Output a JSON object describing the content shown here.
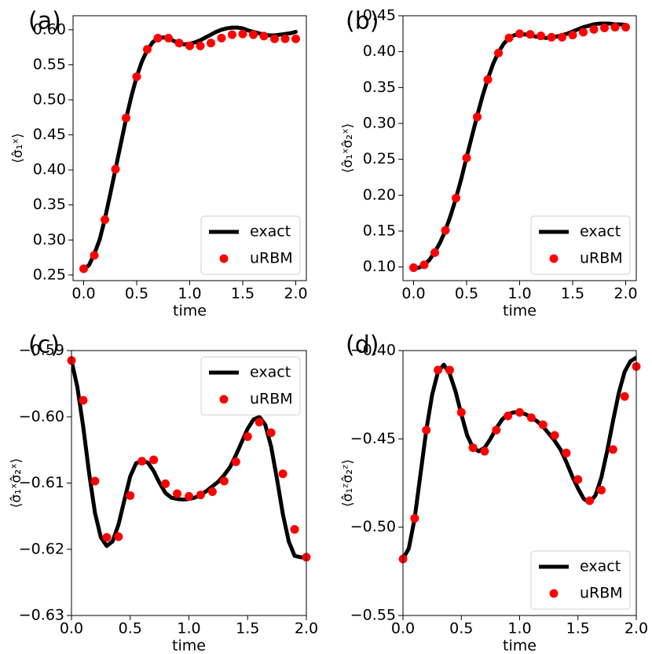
{
  "chart_data": [
    {
      "panel_label": "(a)",
      "type": "line",
      "xlabel": "time",
      "ylabel": "⟨σ̂₁ˣ⟩",
      "xlim": [
        -0.1,
        2.1
      ],
      "ylim": [
        0.242,
        0.62
      ],
      "xticks": [
        0.0,
        0.5,
        1.0,
        1.5,
        2.0
      ],
      "xtick_labels": [
        "0.0",
        "0.5",
        "1.0",
        "1.5",
        "2.0"
      ],
      "yticks": [
        0.25,
        0.3,
        0.35,
        0.4,
        0.45,
        0.5,
        0.55,
        0.6
      ],
      "ytick_labels": [
        "0.25",
        "0.30",
        "0.35",
        "0.40",
        "0.45",
        "0.50",
        "0.55",
        "0.60"
      ],
      "legend_position": "lower-right",
      "series": [
        {
          "name": "exact",
          "style": "line",
          "color": "#000000",
          "x": [
            0.0,
            0.05,
            0.1,
            0.15,
            0.2,
            0.25,
            0.3,
            0.35,
            0.4,
            0.45,
            0.5,
            0.55,
            0.6,
            0.65,
            0.7,
            0.75,
            0.8,
            0.85,
            0.9,
            0.95,
            1.0,
            1.05,
            1.1,
            1.15,
            1.2,
            1.25,
            1.3,
            1.35,
            1.4,
            1.45,
            1.5,
            1.55,
            1.6,
            1.65,
            1.7,
            1.75,
            1.8,
            1.85,
            1.9,
            1.95,
            2.0
          ],
          "y": [
            0.258,
            0.264,
            0.28,
            0.3,
            0.33,
            0.365,
            0.401,
            0.437,
            0.473,
            0.505,
            0.533,
            0.555,
            0.571,
            0.582,
            0.588,
            0.589,
            0.588,
            0.584,
            0.581,
            0.579,
            0.58,
            0.582,
            0.585,
            0.589,
            0.593,
            0.597,
            0.6,
            0.602,
            0.603,
            0.603,
            0.602,
            0.599,
            0.597,
            0.595,
            0.593,
            0.592,
            0.592,
            0.593,
            0.594,
            0.595,
            0.597
          ]
        },
        {
          "name": "uRBM",
          "style": "markers",
          "color": "#ff0000",
          "x": [
            0.0,
            0.1,
            0.2,
            0.3,
            0.4,
            0.5,
            0.6,
            0.7,
            0.8,
            0.9,
            1.0,
            1.1,
            1.2,
            1.3,
            1.4,
            1.5,
            1.6,
            1.7,
            1.8,
            1.9,
            2.0
          ],
          "y": [
            0.259,
            0.278,
            0.329,
            0.401,
            0.474,
            0.533,
            0.572,
            0.588,
            0.588,
            0.581,
            0.577,
            0.577,
            0.581,
            0.588,
            0.593,
            0.594,
            0.593,
            0.591,
            0.587,
            0.587,
            0.587
          ]
        }
      ]
    },
    {
      "panel_label": "(b)",
      "type": "line",
      "xlabel": "time",
      "ylabel": "⟨σ̂₁ˣσ̂₂ˣ⟩",
      "xlim": [
        -0.1,
        2.1
      ],
      "ylim": [
        0.081,
        0.45
      ],
      "xticks": [
        0.0,
        0.5,
        1.0,
        1.5,
        2.0
      ],
      "xtick_labels": [
        "0.0",
        "0.5",
        "1.0",
        "1.5",
        "2.0"
      ],
      "yticks": [
        0.1,
        0.15,
        0.2,
        0.25,
        0.3,
        0.35,
        0.4,
        0.45
      ],
      "ytick_labels": [
        "0.10",
        "0.15",
        "0.20",
        "0.25",
        "0.30",
        "0.35",
        "0.40",
        "0.45"
      ],
      "legend_position": "lower-right",
      "series": [
        {
          "name": "exact",
          "style": "line",
          "color": "#000000",
          "x": [
            0.0,
            0.05,
            0.1,
            0.15,
            0.2,
            0.25,
            0.3,
            0.35,
            0.4,
            0.45,
            0.5,
            0.55,
            0.6,
            0.65,
            0.7,
            0.75,
            0.8,
            0.85,
            0.9,
            0.95,
            1.0,
            1.05,
            1.1,
            1.15,
            1.2,
            1.25,
            1.3,
            1.35,
            1.4,
            1.45,
            1.5,
            1.55,
            1.6,
            1.65,
            1.7,
            1.75,
            1.8,
            1.85,
            1.9,
            1.95,
            2.0
          ],
          "y": [
            0.098,
            0.099,
            0.103,
            0.11,
            0.121,
            0.134,
            0.151,
            0.172,
            0.196,
            0.223,
            0.253,
            0.282,
            0.311,
            0.338,
            0.362,
            0.383,
            0.399,
            0.411,
            0.419,
            0.423,
            0.424,
            0.424,
            0.423,
            0.421,
            0.42,
            0.419,
            0.42,
            0.421,
            0.423,
            0.425,
            0.428,
            0.431,
            0.434,
            0.436,
            0.438,
            0.439,
            0.439,
            0.439,
            0.438,
            0.438,
            0.437
          ]
        },
        {
          "name": "uRBM",
          "style": "markers",
          "color": "#ff0000",
          "x": [
            0.0,
            0.1,
            0.2,
            0.3,
            0.4,
            0.5,
            0.6,
            0.7,
            0.8,
            0.9,
            1.0,
            1.1,
            1.2,
            1.3,
            1.4,
            1.5,
            1.6,
            1.7,
            1.8,
            1.9,
            2.0
          ],
          "y": [
            0.099,
            0.103,
            0.12,
            0.151,
            0.196,
            0.252,
            0.309,
            0.361,
            0.398,
            0.419,
            0.425,
            0.424,
            0.422,
            0.42,
            0.42,
            0.423,
            0.427,
            0.431,
            0.433,
            0.434,
            0.434
          ]
        }
      ]
    },
    {
      "panel_label": "(c)",
      "type": "line",
      "xlabel": "time",
      "ylabel": "⟨σ̂₁ˣσ̂₂ˣ⟩",
      "xlim": [
        0.0,
        2.0
      ],
      "ylim": [
        -0.63,
        -0.59
      ],
      "xticks": [
        0.0,
        0.5,
        1.0,
        1.5,
        2.0
      ],
      "xtick_labels": [
        "0.0",
        "0.5",
        "1.0",
        "1.5",
        "2.0"
      ],
      "yticks": [
        -0.63,
        -0.62,
        -0.61,
        -0.6,
        -0.59
      ],
      "ytick_labels": [
        "−0.63",
        "−0.62",
        "−0.61",
        "−0.60",
        "−0.59"
      ],
      "legend_position": "upper-right",
      "series": [
        {
          "name": "exact",
          "style": "line",
          "color": "#000000",
          "x": [
            0.0,
            0.05,
            0.1,
            0.15,
            0.2,
            0.25,
            0.3,
            0.35,
            0.4,
            0.45,
            0.5,
            0.55,
            0.6,
            0.65,
            0.7,
            0.75,
            0.8,
            0.85,
            0.9,
            0.95,
            1.0,
            1.05,
            1.1,
            1.15,
            1.2,
            1.25,
            1.3,
            1.35,
            1.4,
            1.45,
            1.5,
            1.55,
            1.6,
            1.65,
            1.7,
            1.75,
            1.8,
            1.85,
            1.9,
            1.95,
            2.0
          ],
          "y": [
            -0.5915,
            -0.5955,
            -0.6015,
            -0.6085,
            -0.6145,
            -0.6182,
            -0.6195,
            -0.6188,
            -0.6163,
            -0.6126,
            -0.609,
            -0.607,
            -0.6067,
            -0.6069,
            -0.6082,
            -0.61,
            -0.6115,
            -0.6122,
            -0.6124,
            -0.6125,
            -0.6124,
            -0.6122,
            -0.6118,
            -0.6112,
            -0.6105,
            -0.6098,
            -0.6088,
            -0.6076,
            -0.6058,
            -0.6038,
            -0.6018,
            -0.6004,
            -0.6,
            -0.6012,
            -0.6045,
            -0.6094,
            -0.6147,
            -0.6188,
            -0.621,
            -0.6212,
            -0.6213
          ]
        },
        {
          "name": "uRBM",
          "style": "markers",
          "color": "#ff0000",
          "x": [
            0.0,
            0.1,
            0.2,
            0.3,
            0.4,
            0.5,
            0.6,
            0.7,
            0.8,
            0.9,
            1.0,
            1.1,
            1.2,
            1.3,
            1.4,
            1.5,
            1.6,
            1.7,
            1.8,
            1.9,
            2.0
          ],
          "y": [
            -0.5915,
            -0.5975,
            -0.6097,
            -0.6182,
            -0.6181,
            -0.6119,
            -0.6067,
            -0.6065,
            -0.6101,
            -0.6116,
            -0.612,
            -0.6118,
            -0.6113,
            -0.6097,
            -0.6068,
            -0.603,
            -0.6008,
            -0.6024,
            -0.6086,
            -0.617,
            -0.6212
          ]
        }
      ]
    },
    {
      "panel_label": "(d)",
      "type": "line",
      "xlabel": "time",
      "ylabel": "⟨σ̂₁ᶻσ̂₂ᶻ⟩",
      "xlim": [
        0.0,
        2.0
      ],
      "ylim": [
        -0.55,
        -0.4
      ],
      "xticks": [
        0.0,
        0.5,
        1.0,
        1.5,
        2.0
      ],
      "xtick_labels": [
        "0.0",
        "0.5",
        "1.0",
        "1.5",
        "2.0"
      ],
      "yticks": [
        -0.55,
        -0.5,
        -0.45,
        -0.4
      ],
      "ytick_labels": [
        "−0.55",
        "−0.50",
        "−0.45",
        "−0.40"
      ],
      "legend_position": "lower-right",
      "series": [
        {
          "name": "exact",
          "style": "line",
          "color": "#000000",
          "x": [
            0.0,
            0.05,
            0.1,
            0.15,
            0.2,
            0.25,
            0.3,
            0.35,
            0.4,
            0.45,
            0.5,
            0.55,
            0.6,
            0.65,
            0.7,
            0.75,
            0.8,
            0.85,
            0.9,
            0.95,
            1.0,
            1.05,
            1.1,
            1.15,
            1.2,
            1.25,
            1.3,
            1.35,
            1.4,
            1.45,
            1.5,
            1.55,
            1.6,
            1.65,
            1.7,
            1.75,
            1.8,
            1.85,
            1.9,
            1.95,
            2.0
          ],
          "y": [
            -0.518,
            -0.512,
            -0.495,
            -0.47,
            -0.445,
            -0.425,
            -0.412,
            -0.408,
            -0.413,
            -0.423,
            -0.436,
            -0.448,
            -0.455,
            -0.457,
            -0.455,
            -0.45,
            -0.444,
            -0.439,
            -0.436,
            -0.435,
            -0.435,
            -0.436,
            -0.438,
            -0.44,
            -0.443,
            -0.447,
            -0.451,
            -0.456,
            -0.463,
            -0.471,
            -0.478,
            -0.484,
            -0.486,
            -0.482,
            -0.472,
            -0.457,
            -0.44,
            -0.424,
            -0.412,
            -0.406,
            -0.404
          ]
        },
        {
          "name": "uRBM",
          "style": "markers",
          "color": "#ff0000",
          "x": [
            0.0,
            0.1,
            0.2,
            0.3,
            0.4,
            0.5,
            0.6,
            0.7,
            0.8,
            0.9,
            1.0,
            1.1,
            1.2,
            1.3,
            1.4,
            1.5,
            1.6,
            1.7,
            1.8,
            1.9,
            2.0
          ],
          "y": [
            -0.518,
            -0.495,
            -0.445,
            -0.411,
            -0.411,
            -0.435,
            -0.455,
            -0.457,
            -0.445,
            -0.437,
            -0.435,
            -0.438,
            -0.442,
            -0.448,
            -0.458,
            -0.473,
            -0.485,
            -0.479,
            -0.456,
            -0.426,
            -0.409
          ]
        }
      ]
    }
  ]
}
